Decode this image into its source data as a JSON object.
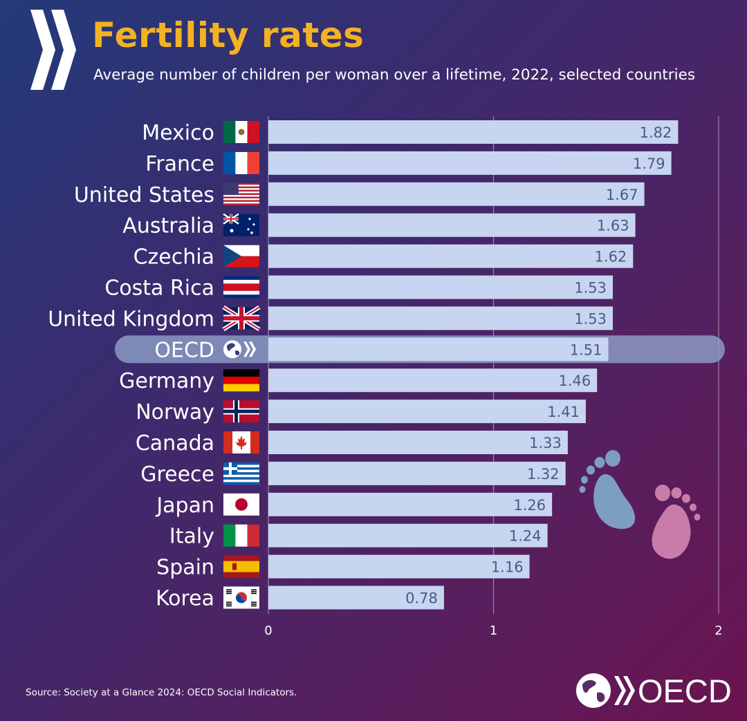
{
  "header": {
    "title": "Fertility rates",
    "subtitle": "Average number of children per woman over a lifetime, 2022, selected countries"
  },
  "footer": {
    "source": "Source: Society at a Glance 2024: OECD Social Indicators.",
    "logo_text": "OECD"
  },
  "colors": {
    "title": "#f4b223",
    "bar": "#c8d5f0",
    "highlight_band": "#8ea1c9",
    "value_text": "#4a5a85",
    "label_text": "#ffffff",
    "foot_blue": "#7d9ec1",
    "foot_pink": "#c97ca9"
  },
  "chart_data": {
    "type": "bar",
    "orientation": "horizontal",
    "title": "Fertility rates",
    "subtitle": "Average number of children per woman over a lifetime, 2022, selected countries",
    "xlim": [
      0,
      2
    ],
    "xticks": [
      0,
      1,
      2
    ],
    "grid": true,
    "highlight": "OECD",
    "categories": [
      "Mexico",
      "France",
      "United States",
      "Australia",
      "Czechia",
      "Costa Rica",
      "United Kingdom",
      "OECD",
      "Germany",
      "Norway",
      "Canada",
      "Greece",
      "Japan",
      "Italy",
      "Spain",
      "Korea"
    ],
    "values": [
      1.82,
      1.79,
      1.67,
      1.63,
      1.62,
      1.53,
      1.53,
      1.51,
      1.46,
      1.41,
      1.33,
      1.32,
      1.26,
      1.24,
      1.16,
      0.78
    ],
    "value_labels": [
      "1.82",
      "1.79",
      "1.67",
      "1.63",
      "1.62",
      "1.53",
      "1.53",
      "1.51",
      "1.46",
      "1.41",
      "1.33",
      "1.32",
      "1.26",
      "1.24",
      "1.16",
      "0.78"
    ],
    "flags": [
      "mexico-flag-icon",
      "france-flag-icon",
      "usa-flag-icon",
      "australia-flag-icon",
      "czechia-flag-icon",
      "costa-rica-flag-icon",
      "uk-flag-icon",
      "oecd-logo-icon",
      "germany-flag-icon",
      "norway-flag-icon",
      "canada-flag-icon",
      "greece-flag-icon",
      "japan-flag-icon",
      "italy-flag-icon",
      "spain-flag-icon",
      "korea-flag-icon"
    ]
  }
}
